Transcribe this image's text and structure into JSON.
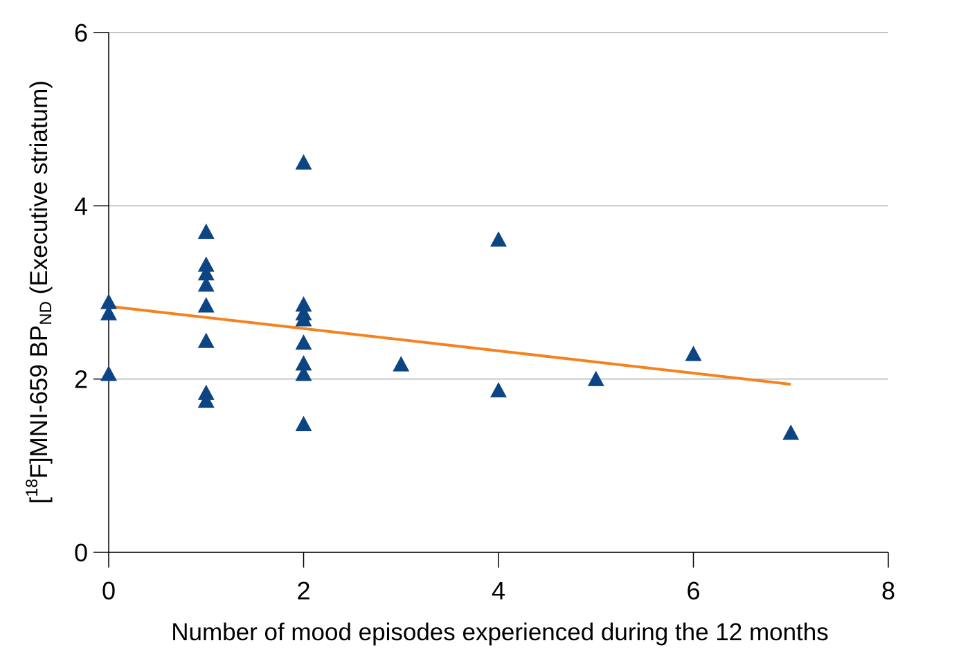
{
  "chart_data": {
    "type": "scatter",
    "xlabel": "Number of mood episodes experienced during the 12 months",
    "ylabel": [
      {
        "text": "[",
        "shift": "normal"
      },
      {
        "text": "18",
        "shift": "super"
      },
      {
        "text": "F]MNI-659 BP",
        "shift": "normal"
      },
      {
        "text": "ND",
        "shift": "sub"
      },
      {
        "text": " (Executive striatum)",
        "shift": "normal"
      }
    ],
    "x": [
      0,
      0,
      0,
      1,
      1,
      1,
      1,
      1,
      1,
      1,
      1,
      2,
      2,
      2,
      2,
      2,
      2,
      2,
      2,
      3,
      4,
      4,
      5,
      6,
      7
    ],
    "values": [
      2.89,
      2.76,
      2.06,
      3.7,
      3.32,
      3.22,
      3.09,
      2.85,
      2.44,
      1.84,
      1.75,
      4.5,
      2.86,
      2.76,
      2.69,
      2.42,
      2.18,
      2.06,
      1.48,
      2.17,
      3.61,
      1.87,
      2.0,
      2.29,
      1.38
    ],
    "color": "#0d4584",
    "marker": "triangle",
    "trend": {
      "x": [
        0,
        7
      ],
      "values": [
        2.84,
        1.94
      ],
      "color": "#f5821f"
    },
    "xlim": [
      0,
      8
    ],
    "xticks": [
      0,
      2,
      4,
      6,
      8
    ],
    "ylim": [
      0,
      6
    ],
    "yticks": [
      0,
      2,
      4,
      6
    ],
    "grid": true
  }
}
